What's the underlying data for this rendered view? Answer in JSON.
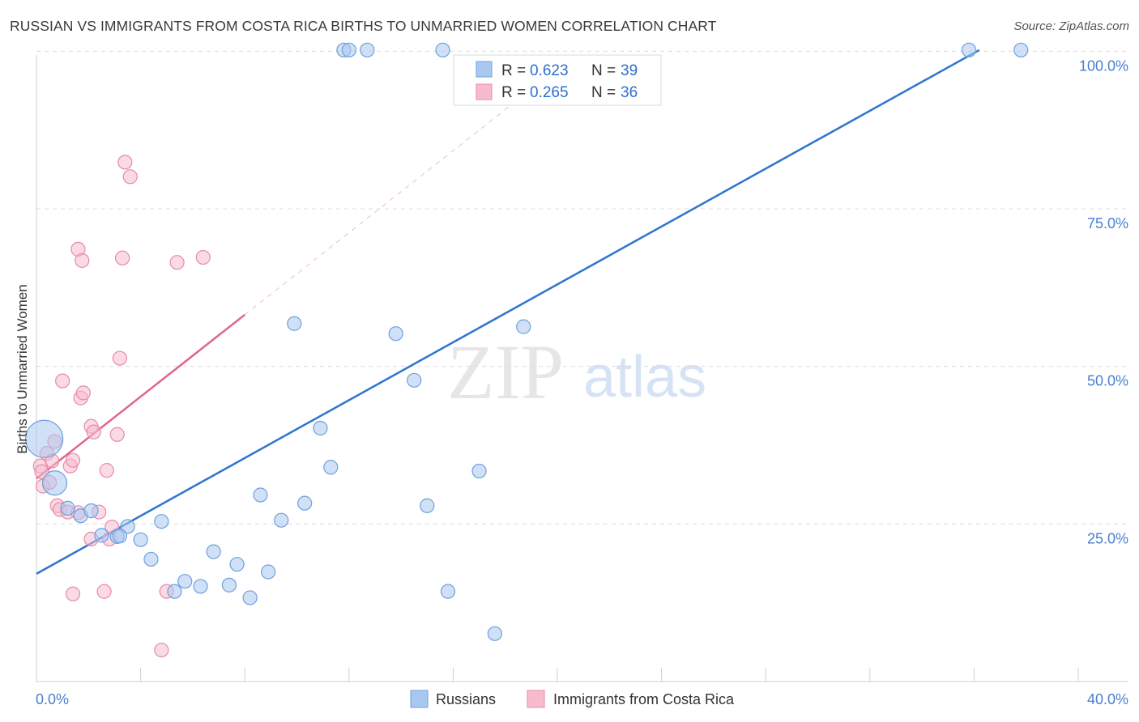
{
  "title": "RUSSIAN VS IMMIGRANTS FROM COSTA RICA BIRTHS TO UNMARRIED WOMEN CORRELATION CHART",
  "source": "Source: ZipAtlas.com",
  "watermark": {
    "zip": "ZIP",
    "atlas": "atlas"
  },
  "colors": {
    "blue_fill": "#a9c8f0",
    "blue_stroke": "#6f9fdc",
    "blue_line": "#2f74d0",
    "pink_fill": "#f6bccd",
    "pink_stroke": "#e88aa8",
    "pink_line": "#e2658f",
    "grid": "#dcdcdc",
    "tick_text": "#4a7fcf"
  },
  "legend": {
    "rows": [
      {
        "r_label": "R = ",
        "r_value": "0.623",
        "n_label": "N = ",
        "n_value": "39"
      },
      {
        "r_label": "R = ",
        "r_value": "0.265",
        "n_label": "N = ",
        "n_value": "36"
      }
    ]
  },
  "chart_data": {
    "type": "scatter",
    "title": "RUSSIAN VS IMMIGRANTS FROM COSTA RICA BIRTHS TO UNMARRIED WOMEN CORRELATION CHART",
    "xlabel": "",
    "ylabel": "Births to Unmarried Women",
    "xlim": [
      0,
      40
    ],
    "ylim": [
      0,
      103
    ],
    "x_tick_labels": [
      "0.0%",
      "40.0%"
    ],
    "y_ticks": [
      25,
      50,
      75,
      100
    ],
    "y_tick_labels": [
      "25.0%",
      "50.0%",
      "75.0%",
      "100.0%"
    ],
    "legend_position": "top-center",
    "series": [
      {
        "name": "Russians",
        "r": 0.623,
        "n": 39,
        "trend": {
          "x": [
            0,
            36.2
          ],
          "y": [
            17.1,
            100.2
          ]
        },
        "points": [
          {
            "x": 0.3,
            "y": 38.5,
            "size": "large"
          },
          {
            "x": 0.7,
            "y": 31.5,
            "size": "medium"
          },
          {
            "x": 1.2,
            "y": 27.5
          },
          {
            "x": 1.7,
            "y": 26.3
          },
          {
            "x": 2.1,
            "y": 27.1
          },
          {
            "x": 2.5,
            "y": 23.2
          },
          {
            "x": 3.1,
            "y": 23.0
          },
          {
            "x": 3.5,
            "y": 24.6
          },
          {
            "x": 4.0,
            "y": 22.5
          },
          {
            "x": 4.4,
            "y": 19.4
          },
          {
            "x": 4.8,
            "y": 25.4
          },
          {
            "x": 5.3,
            "y": 14.3
          },
          {
            "x": 5.7,
            "y": 15.9
          },
          {
            "x": 6.3,
            "y": 15.1
          },
          {
            "x": 6.8,
            "y": 20.6
          },
          {
            "x": 7.4,
            "y": 15.3
          },
          {
            "x": 7.7,
            "y": 18.6
          },
          {
            "x": 8.2,
            "y": 13.3
          },
          {
            "x": 8.6,
            "y": 29.6
          },
          {
            "x": 8.9,
            "y": 17.4
          },
          {
            "x": 9.4,
            "y": 25.6
          },
          {
            "x": 9.9,
            "y": 56.8
          },
          {
            "x": 10.3,
            "y": 28.3
          },
          {
            "x": 10.9,
            "y": 40.2
          },
          {
            "x": 11.3,
            "y": 34.0
          },
          {
            "x": 11.8,
            "y": 100.2
          },
          {
            "x": 12.0,
            "y": 100.2
          },
          {
            "x": 12.7,
            "y": 100.2
          },
          {
            "x": 13.8,
            "y": 55.2
          },
          {
            "x": 14.5,
            "y": 47.8
          },
          {
            "x": 15.0,
            "y": 27.9
          },
          {
            "x": 15.6,
            "y": 100.2
          },
          {
            "x": 15.8,
            "y": 14.3
          },
          {
            "x": 17.0,
            "y": 33.4
          },
          {
            "x": 17.6,
            "y": 7.6
          },
          {
            "x": 18.7,
            "y": 56.3
          },
          {
            "x": 35.8,
            "y": 100.2
          },
          {
            "x": 37.8,
            "y": 100.2
          },
          {
            "x": 3.2,
            "y": 23.1
          }
        ]
      },
      {
        "name": "Immigrants from Costa Rica",
        "r": 0.265,
        "n": 36,
        "trend": {
          "x": [
            0,
            8.0
          ],
          "y": [
            32.2,
            58.2
          ]
        },
        "trend_extension": {
          "x": [
            8.0,
            19.0
          ],
          "y": [
            58.2,
            94.0
          ]
        },
        "points": [
          {
            "x": 0.15,
            "y": 34.2
          },
          {
            "x": 0.2,
            "y": 33.3
          },
          {
            "x": 0.25,
            "y": 31.0
          },
          {
            "x": 0.4,
            "y": 36.2
          },
          {
            "x": 0.5,
            "y": 31.6
          },
          {
            "x": 0.6,
            "y": 35.0
          },
          {
            "x": 0.7,
            "y": 38.1
          },
          {
            "x": 0.8,
            "y": 27.9
          },
          {
            "x": 0.9,
            "y": 27.3
          },
          {
            "x": 1.0,
            "y": 47.7
          },
          {
            "x": 1.2,
            "y": 26.9
          },
          {
            "x": 1.3,
            "y": 34.2
          },
          {
            "x": 1.4,
            "y": 35.1
          },
          {
            "x": 1.4,
            "y": 13.9
          },
          {
            "x": 1.6,
            "y": 26.8
          },
          {
            "x": 1.6,
            "y": 68.6
          },
          {
            "x": 1.7,
            "y": 45.0
          },
          {
            "x": 1.75,
            "y": 66.8
          },
          {
            "x": 1.8,
            "y": 45.8
          },
          {
            "x": 2.1,
            "y": 22.6
          },
          {
            "x": 2.1,
            "y": 40.5
          },
          {
            "x": 2.2,
            "y": 39.6
          },
          {
            "x": 2.4,
            "y": 26.9
          },
          {
            "x": 2.6,
            "y": 14.3
          },
          {
            "x": 2.7,
            "y": 33.5
          },
          {
            "x": 2.8,
            "y": 22.6
          },
          {
            "x": 2.9,
            "y": 24.5
          },
          {
            "x": 3.1,
            "y": 39.2
          },
          {
            "x": 3.2,
            "y": 51.3
          },
          {
            "x": 3.3,
            "y": 67.2
          },
          {
            "x": 3.4,
            "y": 82.4
          },
          {
            "x": 3.6,
            "y": 80.1
          },
          {
            "x": 4.8,
            "y": 5.0
          },
          {
            "x": 5.0,
            "y": 14.3
          },
          {
            "x": 5.4,
            "y": 66.5
          },
          {
            "x": 6.4,
            "y": 67.3
          }
        ]
      }
    ]
  }
}
